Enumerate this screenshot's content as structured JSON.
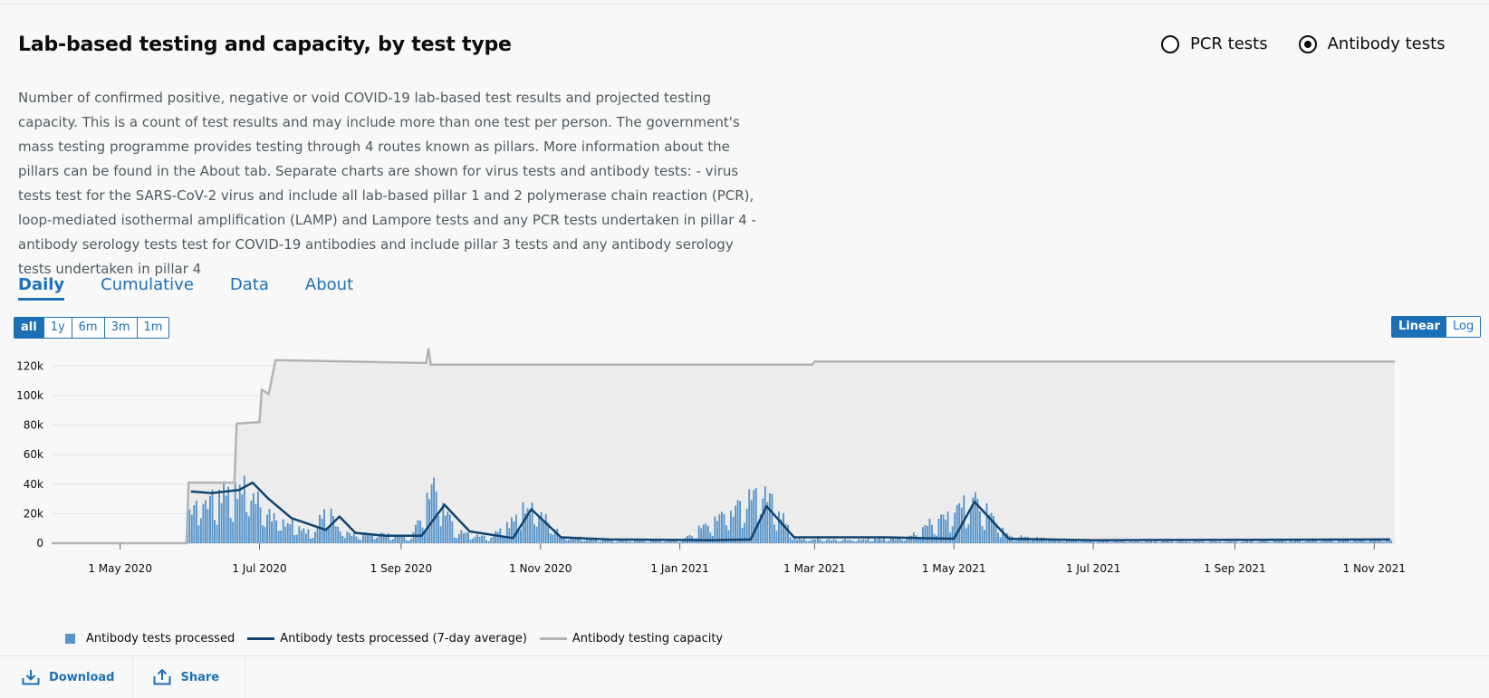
{
  "title": "Lab-based testing and capacity, by test type",
  "radios": [
    {
      "label": "PCR tests",
      "selected": false
    },
    {
      "label": "Antibody tests",
      "selected": true
    }
  ],
  "description": "Number of confirmed positive, negative or void COVID-19 lab-based test results and projected testing capacity. This is a count of test results and may include more than one test per person. The government's mass testing programme provides testing through 4 routes known as pillars. More information about the pillars can be found in the About tab. Separate charts are shown for virus tests and antibody tests: - virus tests test for the SARS-CoV-2 virus and include all lab-based pillar 1 and 2 polymerase chain reaction (PCR), loop-mediated isothermal amplification (LAMP) and Lampore tests and any PCR tests undertaken in pillar 4 - antibody serology tests test for COVID-19 antibodies and include pillar 3 tests and any antibody serology tests undertaken in pillar 4",
  "tabs": [
    "Daily",
    "Cumulative",
    "Data",
    "About"
  ],
  "range_buttons": [
    "all",
    "1y",
    "6m",
    "3m",
    "1m"
  ],
  "scale_buttons": [
    "Linear",
    "Log"
  ],
  "footer": {
    "download": "Download",
    "share": "Share"
  },
  "colors": {
    "bars": "#5694ca",
    "average": "#12436d",
    "capacity": "#b1b4b6",
    "accent": "#1d70b8"
  },
  "chart_data": {
    "type": "bar",
    "title": "",
    "xlabel": "",
    "ylabel": "",
    "x_range": [
      "2020-04-01",
      "2021-11-10"
    ],
    "ylim": [
      0,
      130000
    ],
    "y_ticks": [
      "0",
      "20k",
      "40k",
      "60k",
      "80k",
      "100k",
      "120k"
    ],
    "x_ticks": [
      "1 May 2020",
      "1 Jul 2020",
      "1 Sep 2020",
      "1 Nov 2020",
      "1 Jan 2021",
      "1 Mar 2021",
      "1 May 2021",
      "1 Jul 2021",
      "1 Sep 2021",
      "1 Nov 2021"
    ],
    "legend_position": "bottom",
    "series": [
      {
        "name": "Antibody tests processed",
        "kind": "bar",
        "points": [
          [
            "2020-05-30",
            24000
          ],
          [
            "2020-06-05",
            38000
          ],
          [
            "2020-06-10",
            42000
          ],
          [
            "2020-06-15",
            46000
          ],
          [
            "2020-06-20",
            44000
          ],
          [
            "2020-06-24",
            57000
          ],
          [
            "2020-06-27",
            48000
          ],
          [
            "2020-07-01",
            33000
          ],
          [
            "2020-07-05",
            26000
          ],
          [
            "2020-07-10",
            22000
          ],
          [
            "2020-07-15",
            17000
          ],
          [
            "2020-07-20",
            12000
          ],
          [
            "2020-07-25",
            9000
          ],
          [
            "2020-07-30",
            36000
          ],
          [
            "2020-08-04",
            14000
          ],
          [
            "2020-08-10",
            7000
          ],
          [
            "2020-08-18",
            9000
          ],
          [
            "2020-08-25",
            8000
          ],
          [
            "2020-09-05",
            5000
          ],
          [
            "2020-09-15",
            52000
          ],
          [
            "2020-09-25",
            10000
          ],
          [
            "2020-10-10",
            5000
          ],
          [
            "2020-10-28",
            35000
          ],
          [
            "2020-11-10",
            6000
          ],
          [
            "2020-12-01",
            2500
          ],
          [
            "2021-01-01",
            2000
          ],
          [
            "2021-02-07",
            49000
          ],
          [
            "2021-02-20",
            4000
          ],
          [
            "2021-03-15",
            3000
          ],
          [
            "2021-04-10",
            5000
          ],
          [
            "2021-05-10",
            40000
          ],
          [
            "2021-05-25",
            6000
          ],
          [
            "2021-07-01",
            1800
          ],
          [
            "2021-09-01",
            1500
          ],
          [
            "2021-11-08",
            3000
          ]
        ]
      },
      {
        "name": "Antibody tests processed (7-day average)",
        "kind": "line",
        "points": [
          [
            "2020-06-01",
            35000
          ],
          [
            "2020-06-10",
            34000
          ],
          [
            "2020-06-22",
            36000
          ],
          [
            "2020-06-28",
            41000
          ],
          [
            "2020-07-05",
            30000
          ],
          [
            "2020-07-15",
            17000
          ],
          [
            "2020-07-30",
            9000
          ],
          [
            "2020-08-05",
            18000
          ],
          [
            "2020-08-12",
            7000
          ],
          [
            "2020-08-25",
            5000
          ],
          [
            "2020-09-10",
            5000
          ],
          [
            "2020-09-20",
            26000
          ],
          [
            "2020-10-01",
            8000
          ],
          [
            "2020-10-20",
            3500
          ],
          [
            "2020-10-28",
            23000
          ],
          [
            "2020-11-10",
            4000
          ],
          [
            "2020-12-01",
            2500
          ],
          [
            "2021-01-15",
            2000
          ],
          [
            "2021-02-01",
            2500
          ],
          [
            "2021-02-08",
            25000
          ],
          [
            "2021-02-20",
            4000
          ],
          [
            "2021-04-01",
            4000
          ],
          [
            "2021-05-01",
            3000
          ],
          [
            "2021-05-10",
            28000
          ],
          [
            "2021-05-25",
            3000
          ],
          [
            "2021-07-01",
            2000
          ],
          [
            "2021-11-08",
            2500
          ]
        ]
      },
      {
        "name": "Antibody testing capacity",
        "kind": "line",
        "points": [
          [
            "2020-04-01",
            0
          ],
          [
            "2020-05-30",
            0
          ],
          [
            "2020-05-31",
            41000
          ],
          [
            "2020-06-20",
            41000
          ],
          [
            "2020-06-21",
            81000
          ],
          [
            "2020-07-01",
            82000
          ],
          [
            "2020-07-02",
            104000
          ],
          [
            "2020-07-05",
            101000
          ],
          [
            "2020-07-08",
            124000
          ],
          [
            "2020-09-12",
            122000
          ],
          [
            "2020-09-13",
            132000
          ],
          [
            "2020-09-14",
            121000
          ],
          [
            "2021-02-28",
            121000
          ],
          [
            "2021-03-01",
            123000
          ],
          [
            "2021-11-10",
            123000
          ]
        ]
      }
    ]
  }
}
